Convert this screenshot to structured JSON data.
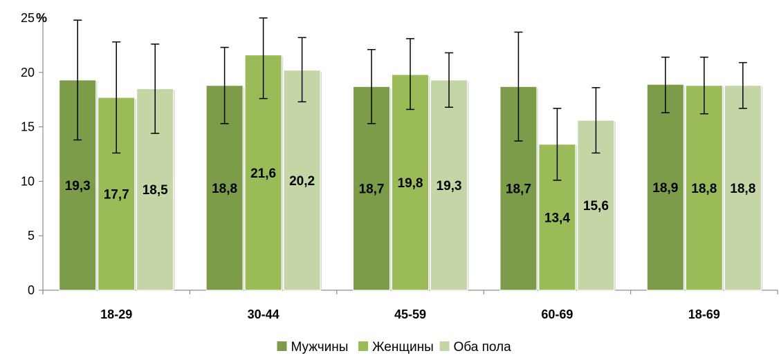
{
  "chart_data": {
    "type": "bar",
    "categories": [
      "18-29",
      "30-44",
      "45-59",
      "60-69",
      "18-69"
    ],
    "y_unit": "%",
    "ylim": [
      0,
      25
    ],
    "y_ticks": [
      "0",
      "5",
      "10",
      "15",
      "20",
      "25"
    ],
    "grid": false,
    "legend_position": "bottom",
    "series": [
      {
        "name": "Мужчины",
        "color": "#7d9c4a",
        "values": [
          19.3,
          18.8,
          18.7,
          18.7,
          18.9
        ],
        "labels": [
          "19,3",
          "18,8",
          "18,7",
          "18,7",
          "18,9"
        ],
        "err_low": [
          13.8,
          15.3,
          15.3,
          13.7,
          16.3
        ],
        "err_high": [
          24.8,
          22.3,
          22.1,
          23.7,
          21.4
        ]
      },
      {
        "name": "Женщины",
        "color": "#9bbb59",
        "values": [
          17.7,
          21.6,
          19.8,
          13.4,
          18.8
        ],
        "labels": [
          "17,7",
          "21,6",
          "19,8",
          "13,4",
          "18,8"
        ],
        "err_low": [
          12.6,
          17.6,
          16.6,
          10.1,
          16.2
        ],
        "err_high": [
          22.8,
          25.0,
          23.1,
          16.7,
          21.4
        ]
      },
      {
        "name": "Оба пола",
        "color": "#c4d6a6",
        "values": [
          18.5,
          20.2,
          19.3,
          15.6,
          18.8
        ],
        "labels": [
          "18,5",
          "20,2",
          "19,3",
          "15,6",
          "18,8"
        ],
        "err_low": [
          14.4,
          17.3,
          16.8,
          12.6,
          16.7
        ],
        "err_high": [
          22.6,
          23.2,
          21.8,
          18.6,
          20.9
        ]
      }
    ]
  }
}
